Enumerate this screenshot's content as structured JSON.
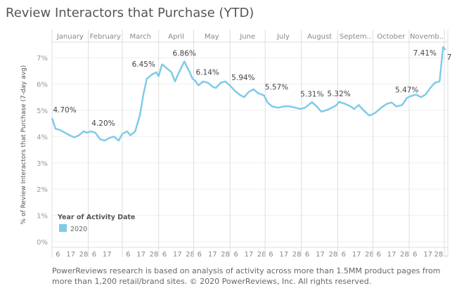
{
  "title": "Review Interactors that Purchase (YTD)",
  "footnote": "PowerReviews research is based on analysis of activity across more than 1.5MM product pages from more than 1,200  retail/brand sites. © 2020 PowerReviews, Inc. All rights reserved.",
  "chart_data": {
    "type": "line",
    "title": "Review Interactors that Purchase (YTD)",
    "ylabel": "% of Review Interactors that Purchase (7-day avg)",
    "ylim": [
      0,
      7.6
    ],
    "yticks": [
      "0%",
      "1%",
      "2%",
      "3%",
      "4%",
      "5%",
      "6%",
      "7%"
    ],
    "months": [
      "January",
      "February",
      "March",
      "April",
      "May",
      "June",
      "July",
      "August",
      "Septem..",
      "October",
      "Novemb..",
      ""
    ],
    "day_ticks": [
      [
        "6",
        "17",
        "28"
      ],
      [
        "6",
        "17"
      ],
      [
        "6",
        "17",
        "28"
      ],
      [
        "6",
        "17",
        "28"
      ],
      [
        "6",
        "17",
        "28"
      ],
      [
        "6",
        "17",
        "28"
      ],
      [
        "6",
        "17",
        "28"
      ],
      [
        "6",
        "17",
        "28"
      ],
      [
        "6",
        "17",
        "28"
      ],
      [
        "6",
        "17",
        "28"
      ],
      [
        "6",
        "17",
        "28.."
      ]
    ],
    "legend": {
      "title": "Year of Activity Date",
      "items": [
        "2020"
      ],
      "position": "bottom-left"
    },
    "grid": true,
    "color": "#7fcbe8",
    "series": [
      {
        "name": "2020",
        "x": [
          "2020-01-01",
          "2020-01-04",
          "2020-01-08",
          "2020-01-12",
          "2020-01-16",
          "2020-01-20",
          "2020-01-24",
          "2020-01-28",
          "2020-01-31",
          "2020-02-03",
          "2020-02-07",
          "2020-02-11",
          "2020-02-15",
          "2020-02-19",
          "2020-02-23",
          "2020-02-27",
          "2020-03-01",
          "2020-03-05",
          "2020-03-08",
          "2020-03-12",
          "2020-03-16",
          "2020-03-19",
          "2020-03-22",
          "2020-03-26",
          "2020-03-30",
          "2020-04-01",
          "2020-04-04",
          "2020-04-08",
          "2020-04-12",
          "2020-04-15",
          "2020-04-19",
          "2020-04-23",
          "2020-04-27",
          "2020-04-30",
          "2020-05-02",
          "2020-05-05",
          "2020-05-09",
          "2020-05-13",
          "2020-05-17",
          "2020-05-20",
          "2020-05-24",
          "2020-05-28",
          "2020-06-01",
          "2020-06-05",
          "2020-06-09",
          "2020-06-13",
          "2020-06-17",
          "2020-06-21",
          "2020-06-25",
          "2020-06-30",
          "2020-07-03",
          "2020-07-07",
          "2020-07-12",
          "2020-07-17",
          "2020-07-22",
          "2020-07-27",
          "2020-07-31",
          "2020-08-04",
          "2020-08-10",
          "2020-08-14",
          "2020-08-18",
          "2020-08-22",
          "2020-08-27",
          "2020-08-31",
          "2020-09-02",
          "2020-09-07",
          "2020-09-12",
          "2020-09-15",
          "2020-09-19",
          "2020-09-23",
          "2020-09-28",
          "2020-10-03",
          "2020-10-08",
          "2020-10-13",
          "2020-10-17",
          "2020-10-21",
          "2020-10-26",
          "2020-10-30",
          "2020-11-03",
          "2020-11-07",
          "2020-11-11",
          "2020-11-15",
          "2020-11-19",
          "2020-11-23",
          "2020-11-27",
          "2020-11-30",
          "2020-12-02"
        ],
        "y": [
          4.7,
          4.3,
          4.25,
          4.15,
          4.05,
          3.97,
          4.05,
          4.2,
          4.15,
          4.2,
          4.15,
          3.9,
          3.85,
          3.95,
          4.0,
          3.85,
          4.1,
          4.2,
          4.05,
          4.2,
          4.8,
          5.6,
          6.2,
          6.35,
          6.45,
          6.3,
          6.75,
          6.6,
          6.45,
          6.1,
          6.5,
          6.86,
          6.5,
          6.2,
          6.14,
          5.95,
          6.1,
          6.05,
          5.9,
          5.85,
          6.05,
          6.1,
          5.94,
          5.75,
          5.6,
          5.5,
          5.7,
          5.8,
          5.65,
          5.57,
          5.3,
          5.15,
          5.1,
          5.15,
          5.15,
          5.1,
          5.05,
          5.1,
          5.31,
          5.15,
          4.95,
          5.0,
          5.1,
          5.2,
          5.32,
          5.25,
          5.15,
          5.05,
          5.2,
          5.0,
          4.8,
          4.9,
          5.1,
          5.25,
          5.3,
          5.15,
          5.2,
          5.47,
          5.55,
          5.6,
          5.5,
          5.6,
          5.85,
          6.05,
          6.1,
          7.41,
          7.3
        ]
      }
    ],
    "annotations": [
      {
        "x": "2020-01-01",
        "label": "4.70%"
      },
      {
        "x": "2020-02-03",
        "label": "4.20%"
      },
      {
        "x": "2020-03-30",
        "label": "6.45%"
      },
      {
        "x": "2020-04-23",
        "label": "6.86%"
      },
      {
        "x": "2020-05-02",
        "label": "6.14%"
      },
      {
        "x": "2020-06-01",
        "label": "5.94%"
      },
      {
        "x": "2020-06-30",
        "label": "5.57%"
      },
      {
        "x": "2020-08-10",
        "label": "5.31%"
      },
      {
        "x": "2020-09-02",
        "label": "5.32%"
      },
      {
        "x": "2020-10-30",
        "label": "5.47%"
      },
      {
        "x": "2020-11-30",
        "label": "7.41%"
      },
      {
        "x": "2020-12-02",
        "label": "7"
      }
    ]
  }
}
